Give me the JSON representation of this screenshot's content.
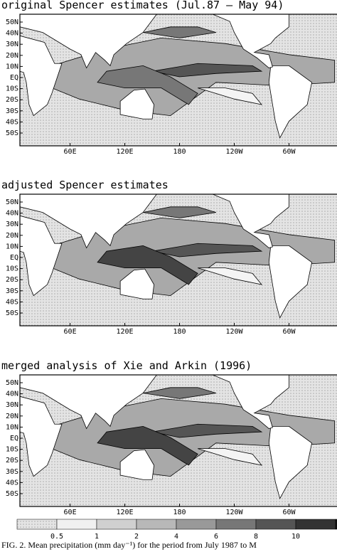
{
  "panels": [
    {
      "title": "original Spencer estimates (Jul.87 – May 94)"
    },
    {
      "title": "adjusted Spencer estimates"
    },
    {
      "title": "merged analysis of Xie and Arkin (1996)"
    }
  ],
  "lat_labels": [
    "50N",
    "40N",
    "30N",
    "20N",
    "10N",
    "EQ",
    "10S",
    "20S",
    "30S",
    "40S",
    "50S"
  ],
  "lon_labels": [
    "60E",
    "120E",
    "180",
    "120W",
    "60W"
  ],
  "colorbar_labels": [
    "0.5",
    "1",
    "2",
    "4",
    "6",
    "8",
    "10"
  ],
  "caption": "FIG. 2. Mean precipitation (mm day⁻¹) for the period from July 1987 to M"
}
